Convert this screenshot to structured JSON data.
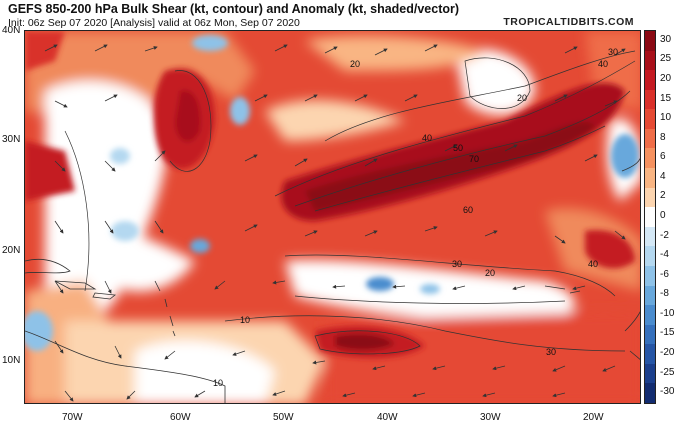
{
  "header": {
    "title": "GEFS 850-200 hPa Bulk Shear (kt, contour) and Anomaly (kt, shaded/vector)",
    "subtitle": "Init: 06z Sep 07 2020   [Analysis]   valid at 06z Mon, Sep 07 2020",
    "brand": "TROPICALTIDBITS.COM"
  },
  "axes": {
    "lat_labels": [
      "40N",
      "30N",
      "20N",
      "10N"
    ],
    "lon_labels": [
      "70W",
      "60W",
      "50W",
      "40W",
      "30W",
      "20W"
    ]
  },
  "colorbar": {
    "labels": [
      "30",
      "25",
      "20",
      "15",
      "10",
      "8",
      "6",
      "4",
      "2",
      "0",
      "-2",
      "-4",
      "-6",
      "-8",
      "-10",
      "-15",
      "-20",
      "-25",
      "-30"
    ],
    "colors": [
      "#8b0a14",
      "#a8101a",
      "#c41a22",
      "#d9302a",
      "#e54a34",
      "#ef6d48",
      "#f5915f",
      "#f9b583",
      "#fcd5b0",
      "#ffffff",
      "#d4e8f6",
      "#b4d8f0",
      "#8ec2e8",
      "#68a8dc",
      "#4a8cce",
      "#3570bc",
      "#2656a6",
      "#1b3f8c",
      "#122c70"
    ]
  },
  "contour_labels": [
    "30",
    "40",
    "20",
    "20",
    "40",
    "50",
    "70",
    "60",
    "30",
    "20",
    "40",
    "10",
    "30",
    "10"
  ],
  "map": {
    "land_color": "#444444",
    "background_color": "#fbe0c8"
  }
}
